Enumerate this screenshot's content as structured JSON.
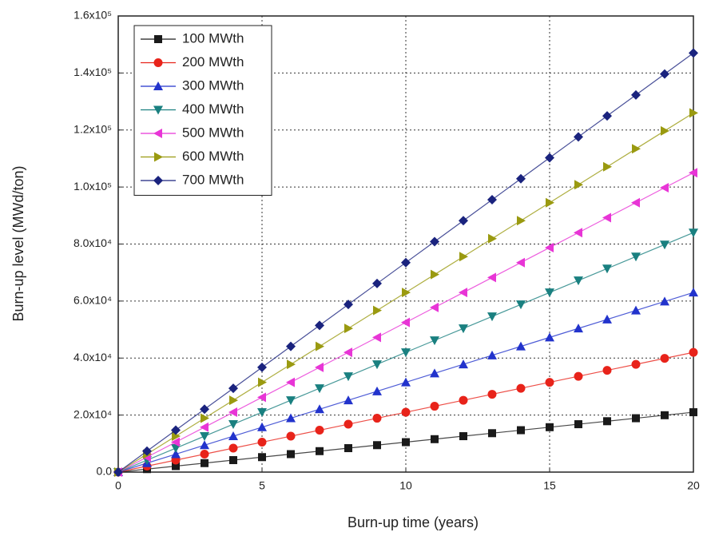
{
  "chart_data": {
    "type": "line",
    "x_label": "Burn-up time (years)",
    "y_label": "Burn-up level (MWd/ton)",
    "x": [
      0,
      1,
      2,
      3,
      4,
      5,
      6,
      7,
      8,
      9,
      10,
      11,
      12,
      13,
      14,
      15,
      16,
      17,
      18,
      19,
      20
    ],
    "xlim": [
      0,
      20
    ],
    "xticks": [
      0,
      5,
      10,
      15,
      20
    ],
    "ylim": [
      0,
      160000
    ],
    "yticks": [
      {
        "value": 0,
        "label": "0.0"
      },
      {
        "value": 20000,
        "label": "2.0x10⁴"
      },
      {
        "value": 40000,
        "label": "4.0x10⁴"
      },
      {
        "value": 60000,
        "label": "6.0x10⁴"
      },
      {
        "value": 80000,
        "label": "8.0x10⁴"
      },
      {
        "value": 100000,
        "label": "1.0x10⁵"
      },
      {
        "value": 120000,
        "label": "1.2x10⁵"
      },
      {
        "value": 140000,
        "label": "1.4x10⁵"
      },
      {
        "value": 160000,
        "label": "1.6x10⁵"
      }
    ],
    "grid": true,
    "legend": "top-left",
    "series": [
      {
        "name": "100 MWth",
        "color": "#1a1a1a",
        "marker": "square",
        "values": [
          0,
          1050,
          2100,
          3150,
          4200,
          5250,
          6300,
          7350,
          8400,
          9450,
          10500,
          11550,
          12600,
          13650,
          14700,
          15750,
          16800,
          17850,
          18900,
          19950,
          21000
        ]
      },
      {
        "name": "200 MWth",
        "color": "#e8231a",
        "marker": "circle",
        "values": [
          0,
          2100,
          4200,
          6300,
          8400,
          10500,
          12600,
          14700,
          16800,
          18900,
          21000,
          23100,
          25200,
          27300,
          29400,
          31500,
          33600,
          35700,
          37800,
          39900,
          42000
        ]
      },
      {
        "name": "300 MWth",
        "color": "#2233cc",
        "marker": "triangle-up",
        "values": [
          0,
          3150,
          6300,
          9450,
          12600,
          15750,
          18900,
          22050,
          25200,
          28350,
          31500,
          34650,
          37800,
          40950,
          44100,
          47250,
          50400,
          53550,
          56700,
          59850,
          63000
        ]
      },
      {
        "name": "400 MWth",
        "color": "#1a8080",
        "marker": "triangle-down",
        "values": [
          0,
          4200,
          8400,
          12600,
          16800,
          21000,
          25200,
          29400,
          33600,
          37800,
          42000,
          46200,
          50400,
          54600,
          58800,
          63000,
          67200,
          71400,
          75600,
          79800,
          84000
        ]
      },
      {
        "name": "500 MWth",
        "color": "#e835d6",
        "marker": "triangle-left",
        "values": [
          0,
          5250,
          10500,
          15750,
          21000,
          26250,
          31500,
          36750,
          42000,
          47250,
          52500,
          57750,
          63000,
          68250,
          73500,
          78750,
          84000,
          89250,
          94500,
          99750,
          105000
        ]
      },
      {
        "name": "600 MWth",
        "color": "#9a9a10",
        "marker": "triangle-right",
        "values": [
          0,
          6300,
          12600,
          18900,
          25200,
          31500,
          37800,
          44100,
          50400,
          56700,
          63000,
          69300,
          75600,
          81900,
          88200,
          94500,
          100800,
          107100,
          113400,
          119700,
          126000
        ]
      },
      {
        "name": "700 MWth",
        "color": "#1a237e",
        "marker": "diamond",
        "values": [
          0,
          7350,
          14700,
          22050,
          29400,
          36750,
          44100,
          51450,
          58800,
          66150,
          73500,
          80850,
          88200,
          95550,
          102900,
          110250,
          117600,
          124950,
          132300,
          139650,
          147000
        ]
      }
    ]
  }
}
